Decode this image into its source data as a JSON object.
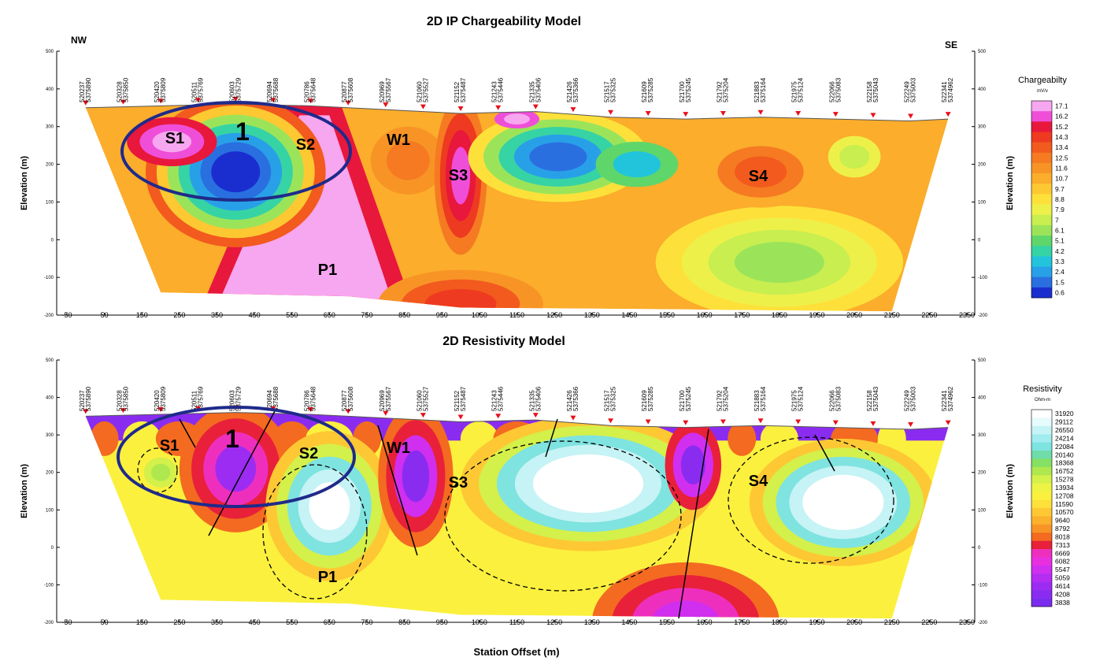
{
  "chart_data": [
    {
      "type": "section",
      "title": "2D IP Chargeability Model",
      "left_label": "NW",
      "right_label": "SE",
      "ylabel": "Elevation (m)",
      "xlim": [
        -50,
        2350
      ],
      "xticks": [
        -50,
        50,
        150,
        250,
        350,
        450,
        550,
        650,
        750,
        850,
        950,
        1050,
        1150,
        1250,
        1350,
        1450,
        1550,
        1650,
        1750,
        1850,
        1950,
        2050,
        2150,
        2250,
        2350
      ],
      "ylim": [
        -200,
        500
      ],
      "yticks": [
        -200,
        -100,
        0,
        100,
        200,
        300,
        400,
        500
      ],
      "station_x": [
        0,
        100,
        200,
        300,
        400,
        500,
        600,
        700,
        800,
        900,
        1000,
        1100,
        1200,
        1300,
        1400,
        1500,
        1600,
        1700,
        1800,
        1900,
        2000,
        2100,
        2200,
        2300
      ],
      "station_easting": [
        "520237",
        "520328",
        "520420",
        "520511",
        "520603",
        "520694",
        "520786",
        "520877",
        "520969",
        "521060",
        "521152",
        "521243",
        "521335",
        "521426",
        "521517",
        "521609",
        "521700",
        "521792",
        "521883",
        "521975",
        "522066",
        "522158",
        "522249",
        "522341"
      ],
      "station_northing": [
        "5375890",
        "5375850",
        "5375809",
        "5375769",
        "5375729",
        "5375688",
        "5375648",
        "5375608",
        "5375567",
        "5375527",
        "5375487",
        "5375446",
        "5375406",
        "5375366",
        "5375325",
        "5375285",
        "5375245",
        "5375204",
        "5375164",
        "5375124",
        "5375083",
        "5375043",
        "5375003",
        "5374962"
      ],
      "annotations": [
        "S1",
        "1",
        "S2",
        "W1",
        "S3",
        "S4",
        "P1"
      ],
      "colorbar": {
        "title": "Chargeabilty",
        "unit": "mV/v",
        "levels": [
          17.1,
          16.2,
          15.2,
          14.3,
          13.4,
          12.5,
          11.6,
          10.7,
          9.7,
          8.8,
          7.9,
          7.0,
          6.1,
          5.1,
          4.2,
          3.3,
          2.4,
          1.5,
          0.6
        ],
        "colors": [
          "#f7a6f0",
          "#ef4fd8",
          "#e8173c",
          "#ee3a20",
          "#f25a1e",
          "#f57a22",
          "#f89426",
          "#fbad2b",
          "#fdc831",
          "#fde13a",
          "#eef04a",
          "#c8ee4f",
          "#9be45a",
          "#5fd66a",
          "#36d3a5",
          "#22c4dc",
          "#28a0e8",
          "#2a6fe0",
          "#1a2ed0"
        ]
      }
    },
    {
      "type": "section",
      "title": "2D Resistivity Model",
      "ylabel": "Elevation (m)",
      "xlabel": "Station Offset (m)",
      "xlim": [
        -50,
        2350
      ],
      "xticks": [
        -50,
        50,
        150,
        250,
        350,
        450,
        550,
        650,
        750,
        850,
        950,
        1050,
        1150,
        1250,
        1350,
        1450,
        1550,
        1650,
        1750,
        1850,
        1950,
        2050,
        2150,
        2250,
        2350
      ],
      "ylim": [
        -200,
        500
      ],
      "yticks": [
        -200,
        -100,
        0,
        100,
        200,
        300,
        400,
        500
      ],
      "station_x": [
        0,
        100,
        200,
        300,
        400,
        500,
        600,
        700,
        800,
        900,
        1000,
        1100,
        1200,
        1300,
        1400,
        1500,
        1600,
        1700,
        1800,
        1900,
        2000,
        2100,
        2200,
        2300
      ],
      "station_easting": [
        "520237",
        "520328",
        "520420",
        "520511",
        "520603",
        "520694",
        "520786",
        "520877",
        "520969",
        "521060",
        "521152",
        "521243",
        "521335",
        "521426",
        "521517",
        "521609",
        "521700",
        "521792",
        "521883",
        "521975",
        "522066",
        "522158",
        "522249",
        "522341"
      ],
      "station_northing": [
        "5375890",
        "5375850",
        "5375809",
        "5375769",
        "5375729",
        "5375688",
        "5375648",
        "5375608",
        "5375567",
        "5375527",
        "5375487",
        "5375446",
        "5375406",
        "5375366",
        "5375325",
        "5375285",
        "5375245",
        "5375204",
        "5375164",
        "5375124",
        "5375083",
        "5375043",
        "5375003",
        "5374962"
      ],
      "annotations": [
        "S1",
        "1",
        "S2",
        "W1",
        "S3",
        "S4",
        "P1"
      ],
      "colorbar": {
        "title": "Resistivity",
        "unit": "Ohm-m",
        "levels": [
          31920,
          29112,
          26550,
          24214,
          22084,
          20140,
          18368,
          16752,
          15278,
          13934,
          12708,
          11590,
          10570,
          9640,
          8792,
          8018,
          7313,
          6669,
          6082,
          5547,
          5059,
          4614,
          4208,
          3838
        ],
        "colors": [
          "#ffffff",
          "#e6fbfb",
          "#c6f3f5",
          "#a0ecef",
          "#7fe3e0",
          "#6fdca9",
          "#85e063",
          "#aee84e",
          "#d4f04a",
          "#eef444",
          "#fbf03e",
          "#fde03a",
          "#fdc833",
          "#fbb12c",
          "#f89426",
          "#f36a20",
          "#e8203a",
          "#ee2fbe",
          "#e82fe0",
          "#d02ff0",
          "#b62df2",
          "#9d2cf2",
          "#8a2cf0",
          "#7a2cee"
        ]
      }
    }
  ]
}
